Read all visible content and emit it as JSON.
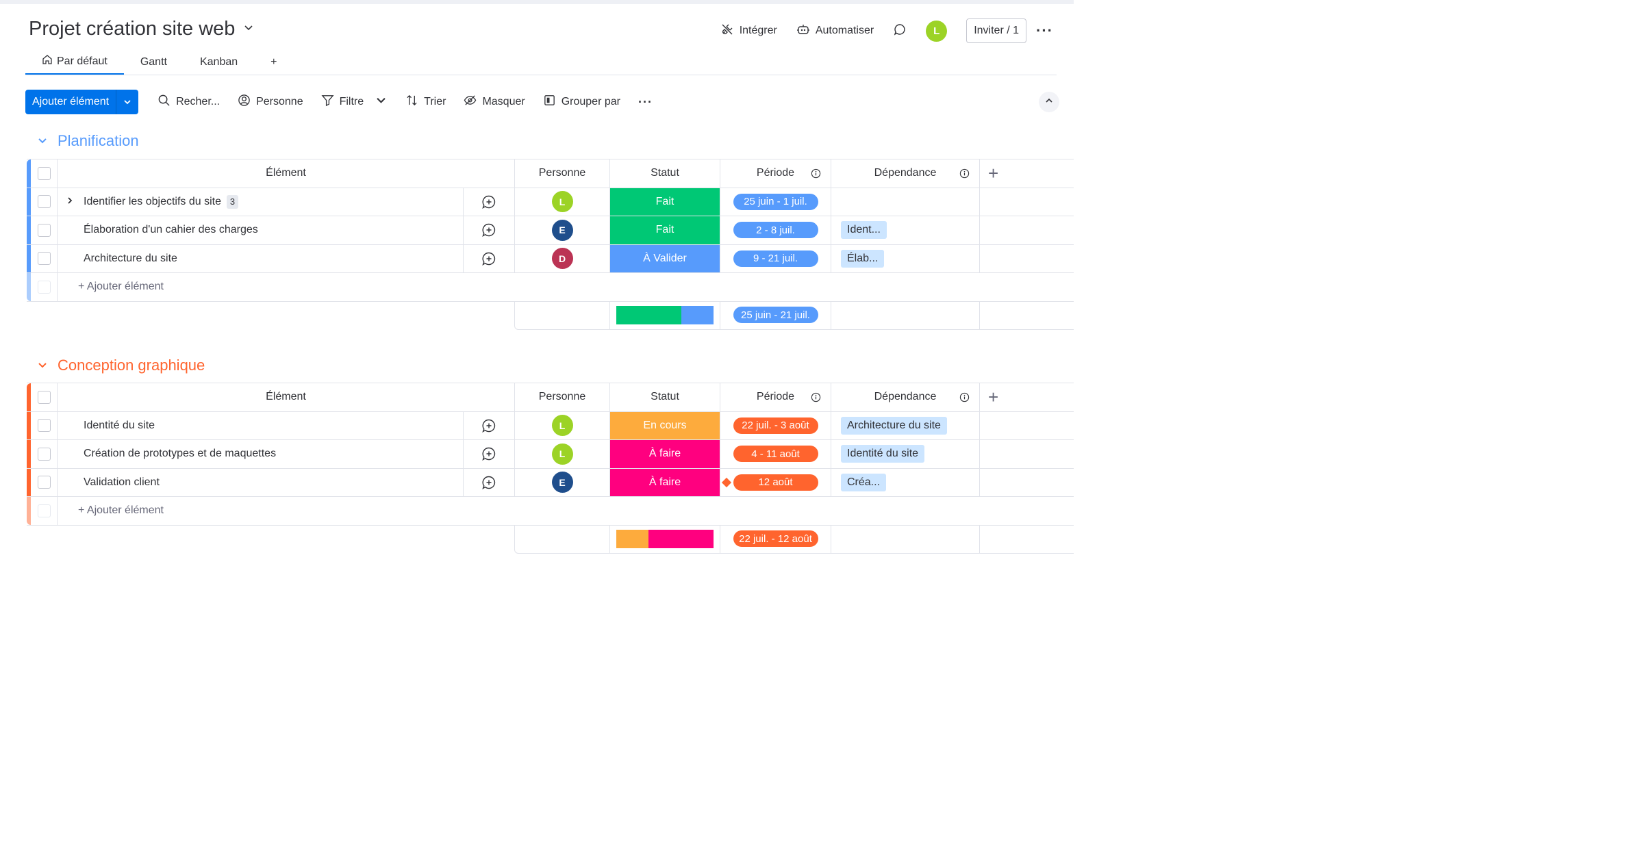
{
  "board": {
    "title": "Projet création site web",
    "header_actions": {
      "integrate": "Intégrer",
      "automate": "Automatiser",
      "user_initial": "L",
      "invite": "Inviter / 1"
    },
    "tabs": [
      "Par défaut",
      "Gantt",
      "Kanban",
      "+"
    ],
    "toolbar": {
      "add_item": "Ajouter élément",
      "search": "Recher...",
      "person": "Personne",
      "filter": "Filtre",
      "sort": "Trier",
      "hide": "Masquer",
      "group_by": "Grouper par"
    },
    "columns": {
      "element": "Élément",
      "person": "Personne",
      "status": "Statut",
      "period": "Période",
      "dependency": "Dépendance",
      "add": "+"
    },
    "add_row_label": "+ Ajouter élément"
  },
  "groups": [
    {
      "name": "Planification",
      "color": "#579bfc",
      "rows": [
        {
          "name": "Identifier les objectifs du site",
          "subitems": "3",
          "person": "L",
          "person_color": "#9cd326",
          "status": "Fait",
          "status_color": "#00c875",
          "period": "25 juin - 1 juil.",
          "period_color": "#579bfc",
          "dependency": ""
        },
        {
          "name": "Élaboration d'un cahier des charges",
          "subitems": "",
          "person": "E",
          "person_color": "#1f4e8c",
          "status": "Fait",
          "status_color": "#00c875",
          "period": "2 - 8 juil.",
          "period_color": "#579bfc",
          "dependency": "Ident..."
        },
        {
          "name": "Architecture du site",
          "subitems": "",
          "person": "D",
          "person_color": "#bb3354",
          "status": "À Valider",
          "status_color": "#579bfc",
          "period": "9 - 21 juil.",
          "period_color": "#579bfc",
          "dependency": "Élab..."
        }
      ],
      "summary": {
        "period": "25 juin - 21 juil.",
        "period_color": "#579bfc",
        "status_segments": [
          {
            "color": "#00c875",
            "share": 0.67
          },
          {
            "color": "#579bfc",
            "share": 0.33
          }
        ]
      }
    },
    {
      "name": "Conception graphique",
      "color": "#ff642e",
      "rows": [
        {
          "name": "Identité du site",
          "subitems": "",
          "person": "L",
          "person_color": "#9cd326",
          "status": "En cours",
          "status_color": "#fdab3d",
          "period": "22 juil. - 3 août",
          "period_color": "#ff642e",
          "dependency": "Architecture du site"
        },
        {
          "name": "Création de prototypes et de maquettes",
          "subitems": "",
          "person": "L",
          "person_color": "#9cd326",
          "status": "À faire",
          "status_color": "#ff007f",
          "period": "4 - 11 août",
          "period_color": "#ff642e",
          "dependency": "Identité du site"
        },
        {
          "name": "Validation client",
          "subitems": "",
          "person": "E",
          "person_color": "#1f4e8c",
          "status": "À faire",
          "status_color": "#ff007f",
          "period": "12 août",
          "period_color": "#ff642e",
          "dependency": "Créa..."
        }
      ],
      "summary": {
        "period": "22 juil. - 12 août",
        "period_color": "#ff642e",
        "status_segments": [
          {
            "color": "#fdab3d",
            "share": 0.33
          },
          {
            "color": "#ff007f",
            "share": 0.67
          }
        ]
      }
    }
  ]
}
